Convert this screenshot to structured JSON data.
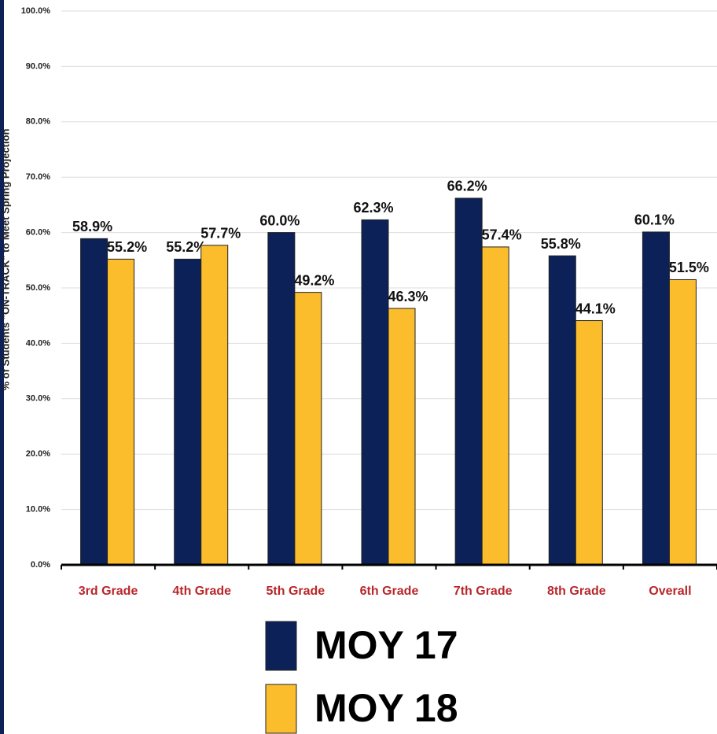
{
  "chart_data": {
    "type": "bar",
    "y_axis_label": "% of Students \"ON-TRACK\" to Meet Spring Projection",
    "categories": [
      "3rd Grade",
      "4th Grade",
      "5th Grade",
      "6th Grade",
      "7th Grade",
      "8th Grade",
      "Overall"
    ],
    "series": [
      {
        "name": "MOY 17",
        "color": "#0c2158",
        "values": [
          58.9,
          55.2,
          60.0,
          62.3,
          66.2,
          55.8,
          60.1
        ],
        "value_labels": [
          "58.9%",
          "55.2%",
          "60.0%",
          "62.3%",
          "66.2%",
          "55.8%",
          "60.1%"
        ]
      },
      {
        "name": "MOY 18",
        "color": "#fbbd2c",
        "values": [
          55.2,
          57.7,
          49.2,
          46.3,
          57.4,
          44.1,
          51.5
        ],
        "value_labels": [
          "55.2%",
          "57.7%",
          "49.2%",
          "46.3%",
          "57.4%",
          "44.1%",
          "51.5%"
        ]
      }
    ],
    "ylim": [
      0,
      100
    ],
    "yticks": [
      {
        "value": 0,
        "label": "0.0%"
      },
      {
        "value": 10,
        "label": "10.0%"
      },
      {
        "value": 20,
        "label": "20.0%"
      },
      {
        "value": 30,
        "label": "30.0%"
      },
      {
        "value": 40,
        "label": "40.0%"
      },
      {
        "value": 50,
        "label": "50.0%"
      },
      {
        "value": 60,
        "label": "60.0%"
      },
      {
        "value": 70,
        "label": "70.0%"
      },
      {
        "value": 80,
        "label": "80.0%"
      },
      {
        "value": 90,
        "label": "90.0%"
      },
      {
        "value": 100,
        "label": "100.0%"
      }
    ],
    "grid": true,
    "legend": "bottom"
  }
}
